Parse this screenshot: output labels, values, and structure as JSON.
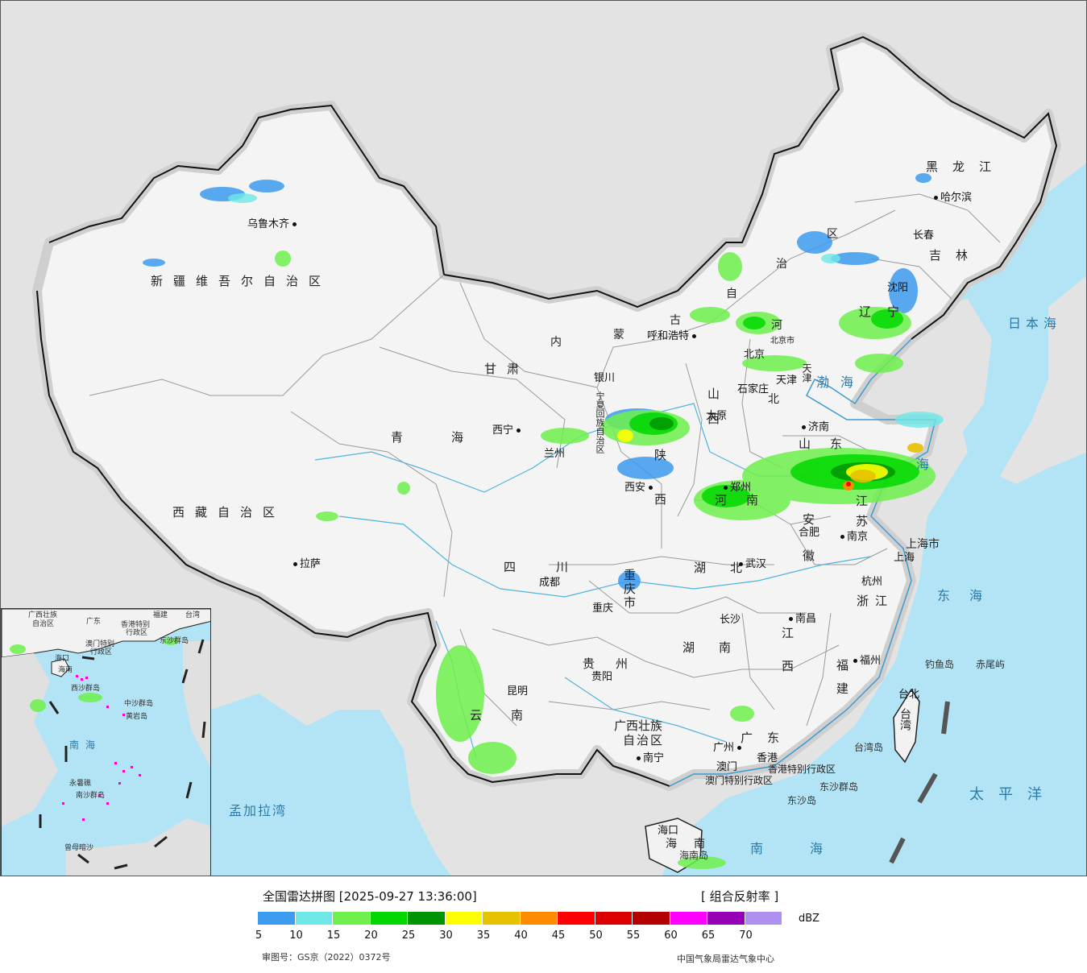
{
  "map": {
    "background_land": "#f2f2f2",
    "background_sea": "#b2e4f6",
    "neighbor_land": "#e0e0e0",
    "provinces": [
      {
        "id": "xinjiang",
        "text": "新疆维吾尔自治区"
      },
      {
        "id": "xizang",
        "text": "西藏自治区"
      },
      {
        "id": "qinghai",
        "text": "青海"
      },
      {
        "id": "gansu",
        "text": "甘肃"
      },
      {
        "id": "neimenggu_1",
        "text": "内"
      },
      {
        "id": "neimenggu_2",
        "text": "蒙"
      },
      {
        "id": "neimenggu_3",
        "text": "古"
      },
      {
        "id": "neimenggu_4",
        "text": "自"
      },
      {
        "id": "neimenggu_5",
        "text": "治"
      },
      {
        "id": "neimenggu_6",
        "text": "区"
      },
      {
        "id": "heilongjiang",
        "text": "黑龙江"
      },
      {
        "id": "jilin",
        "text": "吉林"
      },
      {
        "id": "liaoning",
        "text": "辽宁"
      },
      {
        "id": "hebei_1",
        "text": "河"
      },
      {
        "id": "hebei_2",
        "text": "北"
      },
      {
        "id": "shanxi",
        "text": "山西"
      },
      {
        "id": "shaanxi",
        "text": "陕西"
      },
      {
        "id": "henan",
        "text": "河南"
      },
      {
        "id": "shandong",
        "text": "山东"
      },
      {
        "id": "jiangsu",
        "text": "江苏"
      },
      {
        "id": "anhui",
        "text": "安徽"
      },
      {
        "id": "sichuan",
        "text": "四川"
      },
      {
        "id": "chongqing",
        "text": "重庆市"
      },
      {
        "id": "hubei",
        "text": "湖北"
      },
      {
        "id": "hunan",
        "text": "湖南"
      },
      {
        "id": "jiangxi",
        "text": "江西"
      },
      {
        "id": "zhejiang",
        "text": "浙江"
      },
      {
        "id": "fujian",
        "text": "福建"
      },
      {
        "id": "guizhou",
        "text": "贵州"
      },
      {
        "id": "yunnan",
        "text": "云南"
      },
      {
        "id": "guangxi_1",
        "text": "广西壮族"
      },
      {
        "id": "guangxi_2",
        "text": "自治区"
      },
      {
        "id": "guangdong",
        "text": "广东"
      },
      {
        "id": "hainan_1",
        "text": "海"
      },
      {
        "id": "hainan_2",
        "text": "南"
      },
      {
        "id": "ningxia",
        "text": "宁夏回族自治区"
      },
      {
        "id": "beijing",
        "text": "北京"
      },
      {
        "id": "tianjin",
        "text": "天津"
      },
      {
        "id": "shanghai",
        "text": "上海市"
      },
      {
        "id": "taiwan",
        "text": "台湾"
      },
      {
        "id": "hongkong",
        "text": "香港特别行政区"
      },
      {
        "id": "macao",
        "text": "澳门特别行政区"
      }
    ],
    "cities": [
      {
        "id": "urumqi",
        "text": "乌鲁木齐"
      },
      {
        "id": "lhasa",
        "text": "拉萨"
      },
      {
        "id": "xining",
        "text": "西宁"
      },
      {
        "id": "lanzhou",
        "text": "兰州"
      },
      {
        "id": "yinchuan",
        "text": "银川"
      },
      {
        "id": "hohhot",
        "text": "呼和浩特"
      },
      {
        "id": "harbin",
        "text": "哈尔滨"
      },
      {
        "id": "changchun",
        "text": "长春"
      },
      {
        "id": "shenyang",
        "text": "沈阳"
      },
      {
        "id": "beijing_c",
        "text": "北京市"
      },
      {
        "id": "tianjin_c",
        "text": "天津"
      },
      {
        "id": "shijiazhuang",
        "text": "石家庄"
      },
      {
        "id": "taiyuan",
        "text": "太原"
      },
      {
        "id": "jinan",
        "text": "济南"
      },
      {
        "id": "zhengzhou",
        "text": "郑州"
      },
      {
        "id": "xian",
        "text": "西安"
      },
      {
        "id": "chengdu",
        "text": "成都"
      },
      {
        "id": "chongqing_c",
        "text": "重庆"
      },
      {
        "id": "wuhan",
        "text": "武汉"
      },
      {
        "id": "hefei",
        "text": "合肥"
      },
      {
        "id": "nanjing",
        "text": "南京"
      },
      {
        "id": "shanghai_c",
        "text": "上海"
      },
      {
        "id": "hangzhou",
        "text": "杭州"
      },
      {
        "id": "nanchang",
        "text": "南昌"
      },
      {
        "id": "changsha",
        "text": "长沙"
      },
      {
        "id": "guiyang",
        "text": "贵阳"
      },
      {
        "id": "kunming",
        "text": "昆明"
      },
      {
        "id": "nanning",
        "text": "南宁"
      },
      {
        "id": "guangzhou",
        "text": "广州"
      },
      {
        "id": "macao_c",
        "text": "澳门"
      },
      {
        "id": "hongkong_c",
        "text": "香港"
      },
      {
        "id": "fuzhou",
        "text": "福州"
      },
      {
        "id": "taipei",
        "text": "台北"
      },
      {
        "id": "haikou",
        "text": "海口"
      }
    ],
    "seas": [
      {
        "id": "bohai",
        "text": "渤海"
      },
      {
        "id": "huanghai",
        "text": "海"
      },
      {
        "id": "japan_sea",
        "text": "日本海"
      },
      {
        "id": "east_sea",
        "text": "东海"
      },
      {
        "id": "pacific",
        "text": "太平洋"
      },
      {
        "id": "south_sea",
        "text": "南海"
      },
      {
        "id": "bengal",
        "text": "孟加拉湾"
      }
    ],
    "islands": [
      {
        "id": "diaoyu",
        "text": "钓鱼岛"
      },
      {
        "id": "chiwei",
        "text": "赤尾屿"
      },
      {
        "id": "taiwan_isl",
        "text": "台湾岛"
      },
      {
        "id": "dongsha_q",
        "text": "东沙群岛"
      },
      {
        "id": "dongsha",
        "text": "东沙岛"
      },
      {
        "id": "hainan_isl",
        "text": "海南岛"
      }
    ]
  },
  "inset": {
    "labels": [
      {
        "id": "i_guangxi",
        "text": "广西壮族"
      },
      {
        "id": "i_guangxi2",
        "text": "自治区"
      },
      {
        "id": "i_guangdong",
        "text": "广东"
      },
      {
        "id": "i_fujian",
        "text": "福建"
      },
      {
        "id": "i_taiwan",
        "text": "台湾"
      },
      {
        "id": "i_hk",
        "text": "香港特别"
      },
      {
        "id": "i_hk2",
        "text": "行政区"
      },
      {
        "id": "i_macao",
        "text": "澳门特别"
      },
      {
        "id": "i_macao2",
        "text": "行政区"
      },
      {
        "id": "i_dongsha",
        "text": "东沙群岛"
      },
      {
        "id": "i_haikou",
        "text": "海口"
      },
      {
        "id": "i_hainan",
        "text": "海南"
      },
      {
        "id": "i_xisha",
        "text": "西沙群岛"
      },
      {
        "id": "i_zhongsha",
        "text": "中沙群岛"
      },
      {
        "id": "i_huangyan",
        "text": "黄岩岛"
      },
      {
        "id": "i_nansha",
        "text": "南沙群岛"
      },
      {
        "id": "i_yongshu",
        "text": "永暑礁"
      },
      {
        "id": "i_zengmu",
        "text": "曾母暗沙"
      }
    ],
    "sea": "南海"
  },
  "legend": {
    "title": "全国雷达拼图 [2025-09-27 13:36:00]",
    "product": "[ 组合反射率 ]",
    "unit": "dBZ",
    "colors": [
      "#3d9bf0",
      "#6ee7e7",
      "#6ff04c",
      "#00d800",
      "#009500",
      "#ffff00",
      "#e6c200",
      "#ff8c00",
      "#ff0000",
      "#dc0000",
      "#b40000",
      "#ff00ff",
      "#9600b4",
      "#ad90f0"
    ],
    "ticks": [
      "5",
      "10",
      "15",
      "20",
      "25",
      "30",
      "35",
      "40",
      "45",
      "50",
      "55",
      "60",
      "65",
      "70"
    ],
    "map_approval": "审图号：GS京（2022）0372号",
    "source": "中国气象局雷达气象中心"
  }
}
